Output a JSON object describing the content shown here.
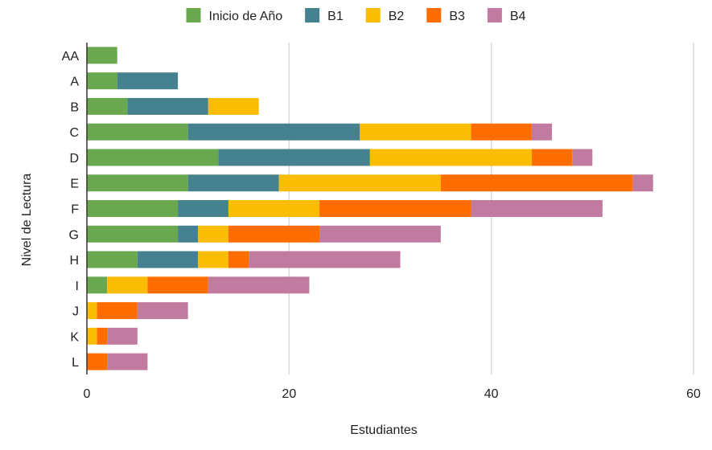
{
  "chart_data": {
    "type": "bar",
    "orientation": "horizontal",
    "stacked": true,
    "title": "",
    "xlabel": "Estudiantes",
    "ylabel": "Nivel de Lectura",
    "xlim": [
      0,
      60
    ],
    "x_ticks": [
      "0",
      "20",
      "40",
      "60"
    ],
    "grid": "vertical",
    "legend_position": "top",
    "categories": [
      "AA",
      "A",
      "B",
      "C",
      "D",
      "E",
      "F",
      "G",
      "H",
      "I",
      "J",
      "K",
      "L"
    ],
    "series": [
      {
        "name": "Inicio de Año",
        "color": "#6aa84f",
        "values": [
          3,
          3,
          4,
          10,
          13,
          10,
          9,
          9,
          5,
          2,
          0,
          0,
          0
        ]
      },
      {
        "name": "B1",
        "color": "#45818e",
        "values": [
          0,
          6,
          8,
          17,
          15,
          9,
          5,
          2,
          6,
          0,
          0,
          0,
          0
        ]
      },
      {
        "name": "B2",
        "color": "#fbbc04",
        "values": [
          0,
          0,
          5,
          11,
          16,
          16,
          9,
          3,
          3,
          4,
          1,
          1,
          0
        ]
      },
      {
        "name": "B3",
        "color": "#ff6d01",
        "values": [
          0,
          0,
          0,
          6,
          4,
          19,
          15,
          9,
          2,
          6,
          4,
          1,
          2
        ]
      },
      {
        "name": "B4",
        "color": "#c27ba0",
        "values": [
          0,
          0,
          0,
          2,
          2,
          2,
          13,
          12,
          15,
          10,
          5,
          3,
          4
        ]
      }
    ]
  }
}
